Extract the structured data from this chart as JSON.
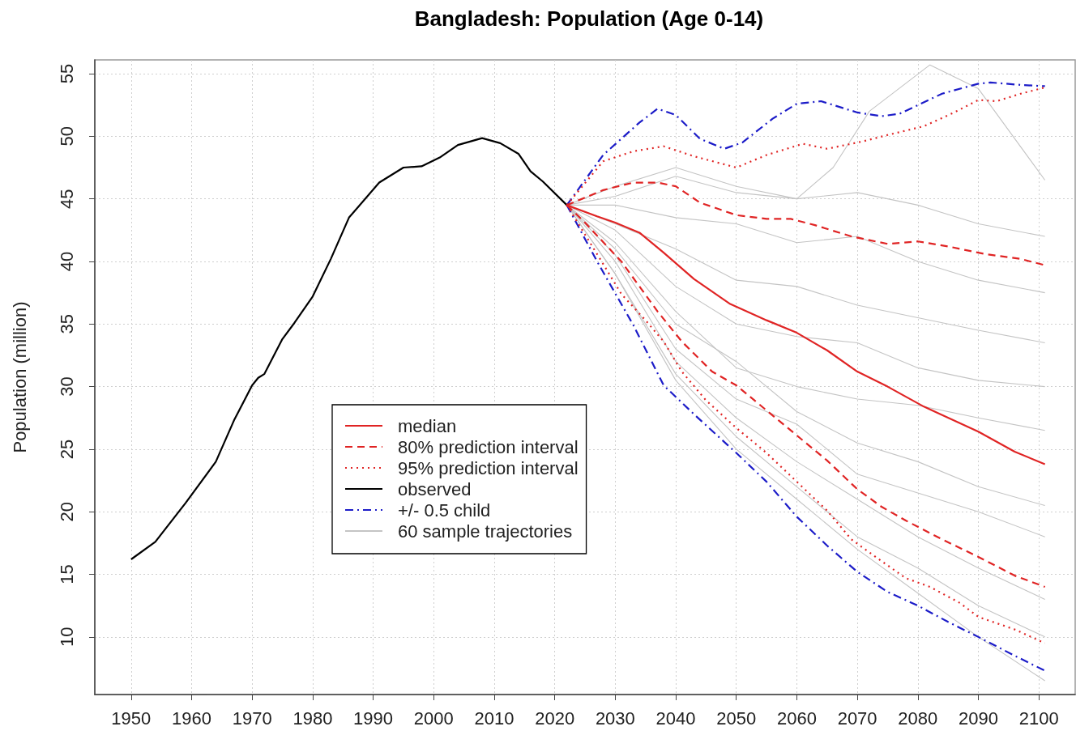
{
  "chart_data": {
    "type": "line",
    "title": "Bangladesh: Population (Age 0-14)",
    "ylabel": "Population (million)",
    "xlim": [
      1944,
      2106
    ],
    "xticks": [
      1950,
      1960,
      1970,
      1980,
      1990,
      2000,
      2010,
      2020,
      2030,
      2040,
      2050,
      2060,
      2070,
      2080,
      2090,
      2100
    ],
    "ylim": [
      5.4,
      56.1
    ],
    "yticks": [
      10,
      15,
      20,
      25,
      30,
      35,
      40,
      45,
      50,
      55
    ],
    "grid": true,
    "legend": "bottom left",
    "series": [
      {
        "name": "median",
        "color": "#e02424",
        "line_style": "solid",
        "x": [
          2022,
          2027,
          2030,
          2034,
          2038,
          2043,
          2049,
          2055,
          2060,
          2065,
          2070,
          2075,
          2081,
          2090,
          2096,
          2101
        ],
        "values": [
          44.5,
          43.6,
          43.1,
          42.3,
          40.7,
          38.6,
          36.6,
          35.3,
          34.3,
          32.9,
          31.2,
          30.0,
          28.4,
          26.4,
          24.8,
          23.8
        ]
      },
      {
        "name": "80% prediction interval",
        "color": "#e02424",
        "line_style": "dashed",
        "x": [
          2022,
          2028,
          2033,
          2037,
          2040,
          2044,
          2050,
          2055,
          2059,
          2063,
          2069,
          2075,
          2080,
          2085,
          2091,
          2097,
          2101
        ],
        "values": [
          44.5,
          45.7,
          46.3,
          46.3,
          46.0,
          44.7,
          43.7,
          43.4,
          43.4,
          42.9,
          42.0,
          41.4,
          41.6,
          41.2,
          40.6,
          40.2,
          39.7
        ]
      },
      {
        "color": "#e02424",
        "line_style": "dashed",
        "x": [
          2022,
          2025,
          2031,
          2037,
          2041,
          2046,
          2050,
          2055,
          2060,
          2065,
          2070,
          2074,
          2078,
          2084,
          2090,
          2096,
          2101
        ],
        "values": [
          44.5,
          43.1,
          40.0,
          36.0,
          33.6,
          31.2,
          30.1,
          28.1,
          26.1,
          24.1,
          21.8,
          20.4,
          19.3,
          17.8,
          16.4,
          14.9,
          14.0
        ]
      },
      {
        "name": "95% prediction interval",
        "color": "#e02424",
        "line_style": "dotted",
        "x": [
          2022,
          2028,
          2033,
          2038,
          2043,
          2050,
          2055,
          2061,
          2065,
          2071,
          2075,
          2081,
          2086,
          2090,
          2093,
          2097,
          2101
        ],
        "values": [
          44.5,
          48.0,
          48.8,
          49.2,
          48.4,
          47.5,
          48.5,
          49.4,
          49.0,
          49.6,
          50.1,
          50.8,
          51.9,
          52.9,
          52.8,
          53.4,
          53.9
        ]
      },
      {
        "color": "#e02424",
        "line_style": "dotted",
        "x": [
          2022,
          2028,
          2031,
          2035,
          2038,
          2041,
          2045,
          2050,
          2055,
          2060,
          2065,
          2069,
          2073,
          2078,
          2082,
          2087,
          2090,
          2096,
          2101
        ],
        "values": [
          44.5,
          39.8,
          37.4,
          35.3,
          33.6,
          31.2,
          28.9,
          26.7,
          24.7,
          22.4,
          20.1,
          17.8,
          16.4,
          14.7,
          14.0,
          12.7,
          11.6,
          10.6,
          9.5
        ]
      },
      {
        "name": "observed",
        "color": "#000000",
        "line_style": "solid",
        "x": [
          1950,
          1954,
          1959,
          1964,
          1967,
          1970,
          1971,
          1972,
          1975,
          1977,
          1980,
          1983,
          1986,
          1991,
          1995,
          1998,
          2001,
          2004,
          2008,
          2011,
          2014,
          2016,
          2018,
          2022
        ],
        "values": [
          16.2,
          17.6,
          20.7,
          24.0,
          27.3,
          30.1,
          30.7,
          31.0,
          33.8,
          35.1,
          37.2,
          40.2,
          43.5,
          46.3,
          47.5,
          47.6,
          48.3,
          49.3,
          49.85,
          49.45,
          48.6,
          47.2,
          46.4,
          44.5
        ]
      },
      {
        "name": "+/- 0.5 child",
        "color": "#1c1cc8",
        "line_style": "dashdot",
        "x": [
          2022,
          2028,
          2034,
          2037,
          2040,
          2044,
          2048,
          2051,
          2056,
          2060,
          2064,
          2070,
          2074,
          2077,
          2084,
          2090,
          2092,
          2097,
          2101
        ],
        "values": [
          44.5,
          48.5,
          51.1,
          52.2,
          51.7,
          49.8,
          49.0,
          49.5,
          51.4,
          52.6,
          52.8,
          51.9,
          51.6,
          51.8,
          53.4,
          54.2,
          54.3,
          54.1,
          54.0
        ]
      },
      {
        "color": "#1c1cc8",
        "line_style": "dashdot",
        "x": [
          2022,
          2027,
          2033,
          2038,
          2043,
          2050,
          2055,
          2060,
          2065,
          2070,
          2075,
          2080,
          2085,
          2090,
          2096,
          2101
        ],
        "values": [
          44.5,
          40.0,
          34.9,
          30.1,
          27.8,
          24.7,
          22.4,
          19.6,
          17.3,
          15.2,
          13.6,
          12.5,
          11.2,
          10.0,
          8.5,
          7.3
        ]
      },
      {
        "name": "60 sample trajectories",
        "color": "#c4c4c4",
        "x": [
          2022,
          2030,
          2040,
          2050,
          2060,
          2066,
          2072,
          2082,
          2090,
          2101
        ],
        "values": [
          44.5,
          45.2,
          46.8,
          45.5,
          45.0,
          47.5,
          52.0,
          55.7,
          53.8,
          46.5
        ]
      },
      {
        "color": "#c4c4c4",
        "x": [
          2022,
          2030,
          2040,
          2050,
          2060,
          2070,
          2080,
          2090,
          2101
        ],
        "values": [
          44.5,
          46.0,
          47.5,
          46.0,
          45.0,
          45.5,
          44.5,
          43.0,
          42.0
        ]
      },
      {
        "color": "#c4c4c4",
        "x": [
          2022,
          2030,
          2040,
          2050,
          2060,
          2070,
          2080,
          2090,
          2101
        ],
        "values": [
          44.5,
          44.5,
          43.5,
          43.0,
          41.5,
          42.0,
          40.0,
          38.5,
          37.5
        ]
      },
      {
        "color": "#c4c4c4",
        "x": [
          2022,
          2030,
          2040,
          2050,
          2060,
          2070,
          2080,
          2090,
          2101
        ],
        "values": [
          44.5,
          43.0,
          41.0,
          38.5,
          38.0,
          36.5,
          35.5,
          34.5,
          33.5
        ]
      },
      {
        "color": "#c4c4c4",
        "x": [
          2022,
          2030,
          2040,
          2050,
          2060,
          2070,
          2080,
          2090,
          2101
        ],
        "values": [
          44.5,
          42.5,
          38.0,
          35.0,
          34.0,
          33.5,
          31.5,
          30.5,
          30.0
        ]
      },
      {
        "color": "#c4c4c4",
        "x": [
          2022,
          2030,
          2040,
          2050,
          2060,
          2070,
          2080,
          2090,
          2101
        ],
        "values": [
          44.5,
          41.5,
          36.0,
          31.5,
          30.0,
          29.0,
          28.5,
          27.5,
          26.5
        ]
      },
      {
        "color": "#c4c4c4",
        "x": [
          2022,
          2030,
          2040,
          2050,
          2060,
          2070,
          2080,
          2090,
          2101
        ],
        "values": [
          44.5,
          41.0,
          35.0,
          32.0,
          28.0,
          25.5,
          24.0,
          22.0,
          20.5
        ]
      },
      {
        "color": "#c4c4c4",
        "x": [
          2022,
          2030,
          2040,
          2050,
          2060,
          2070,
          2080,
          2090,
          2101
        ],
        "values": [
          44.5,
          40.5,
          33.0,
          29.0,
          27.0,
          23.0,
          21.5,
          20.0,
          18.0
        ]
      },
      {
        "color": "#c4c4c4",
        "x": [
          2022,
          2030,
          2040,
          2050,
          2060,
          2070,
          2080,
          2090,
          2101
        ],
        "values": [
          44.5,
          40.0,
          32.0,
          27.5,
          24.0,
          21.0,
          18.0,
          15.5,
          13.0
        ]
      },
      {
        "color": "#c4c4c4",
        "x": [
          2022,
          2030,
          2040,
          2050,
          2060,
          2070,
          2080,
          2090,
          2101
        ],
        "values": [
          44.5,
          39.0,
          31.0,
          26.0,
          22.0,
          18.0,
          15.5,
          12.5,
          10.0
        ]
      },
      {
        "color": "#c4c4c4",
        "x": [
          2022,
          2030,
          2040,
          2050,
          2060,
          2070,
          2080,
          2090,
          2101
        ],
        "values": [
          44.5,
          39.0,
          30.5,
          25.0,
          21.0,
          17.0,
          13.5,
          10.0,
          6.5
        ]
      }
    ]
  }
}
